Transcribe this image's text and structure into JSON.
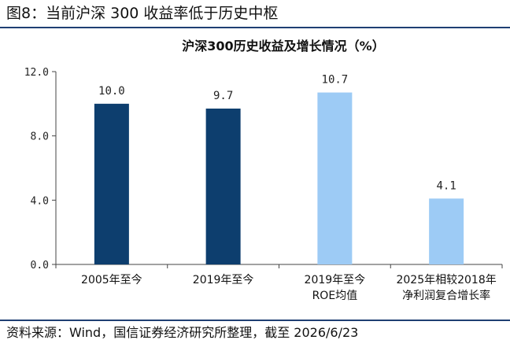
{
  "figure_title": "图8：当前沪深 300 收益率低于历史中枢",
  "source_note": "资料来源：Wind，国信证券经济研究所整理，截至 2026/6/23",
  "colors": {
    "dark_blue": "#0d3e6e",
    "light_blue": "#9dcbf5",
    "rule": "#1f3f73",
    "axis": "#444444"
  },
  "chart_data": {
    "type": "bar",
    "title": "沪深300历史收益及增长情况（%）",
    "categories": [
      [
        "2005年至今"
      ],
      [
        "2019年至今"
      ],
      [
        "2019年至今",
        "ROE均值"
      ],
      [
        "2025年相较2018年",
        "净利润复合增长率"
      ]
    ],
    "values": [
      10.0,
      9.7,
      10.7,
      4.1
    ],
    "value_labels": [
      "10.0",
      "9.7",
      "10.7",
      "4.1"
    ],
    "bar_colors": [
      "#0d3e6e",
      "#0d3e6e",
      "#9dcbf5",
      "#9dcbf5"
    ],
    "ylim": [
      0,
      12
    ],
    "yticks": [
      0,
      4,
      8,
      12
    ],
    "ytick_labels": [
      "0.0",
      "4.0",
      "8.0",
      "12.0"
    ],
    "xlabel": "",
    "ylabel": "",
    "grid": false,
    "legend": "none"
  }
}
